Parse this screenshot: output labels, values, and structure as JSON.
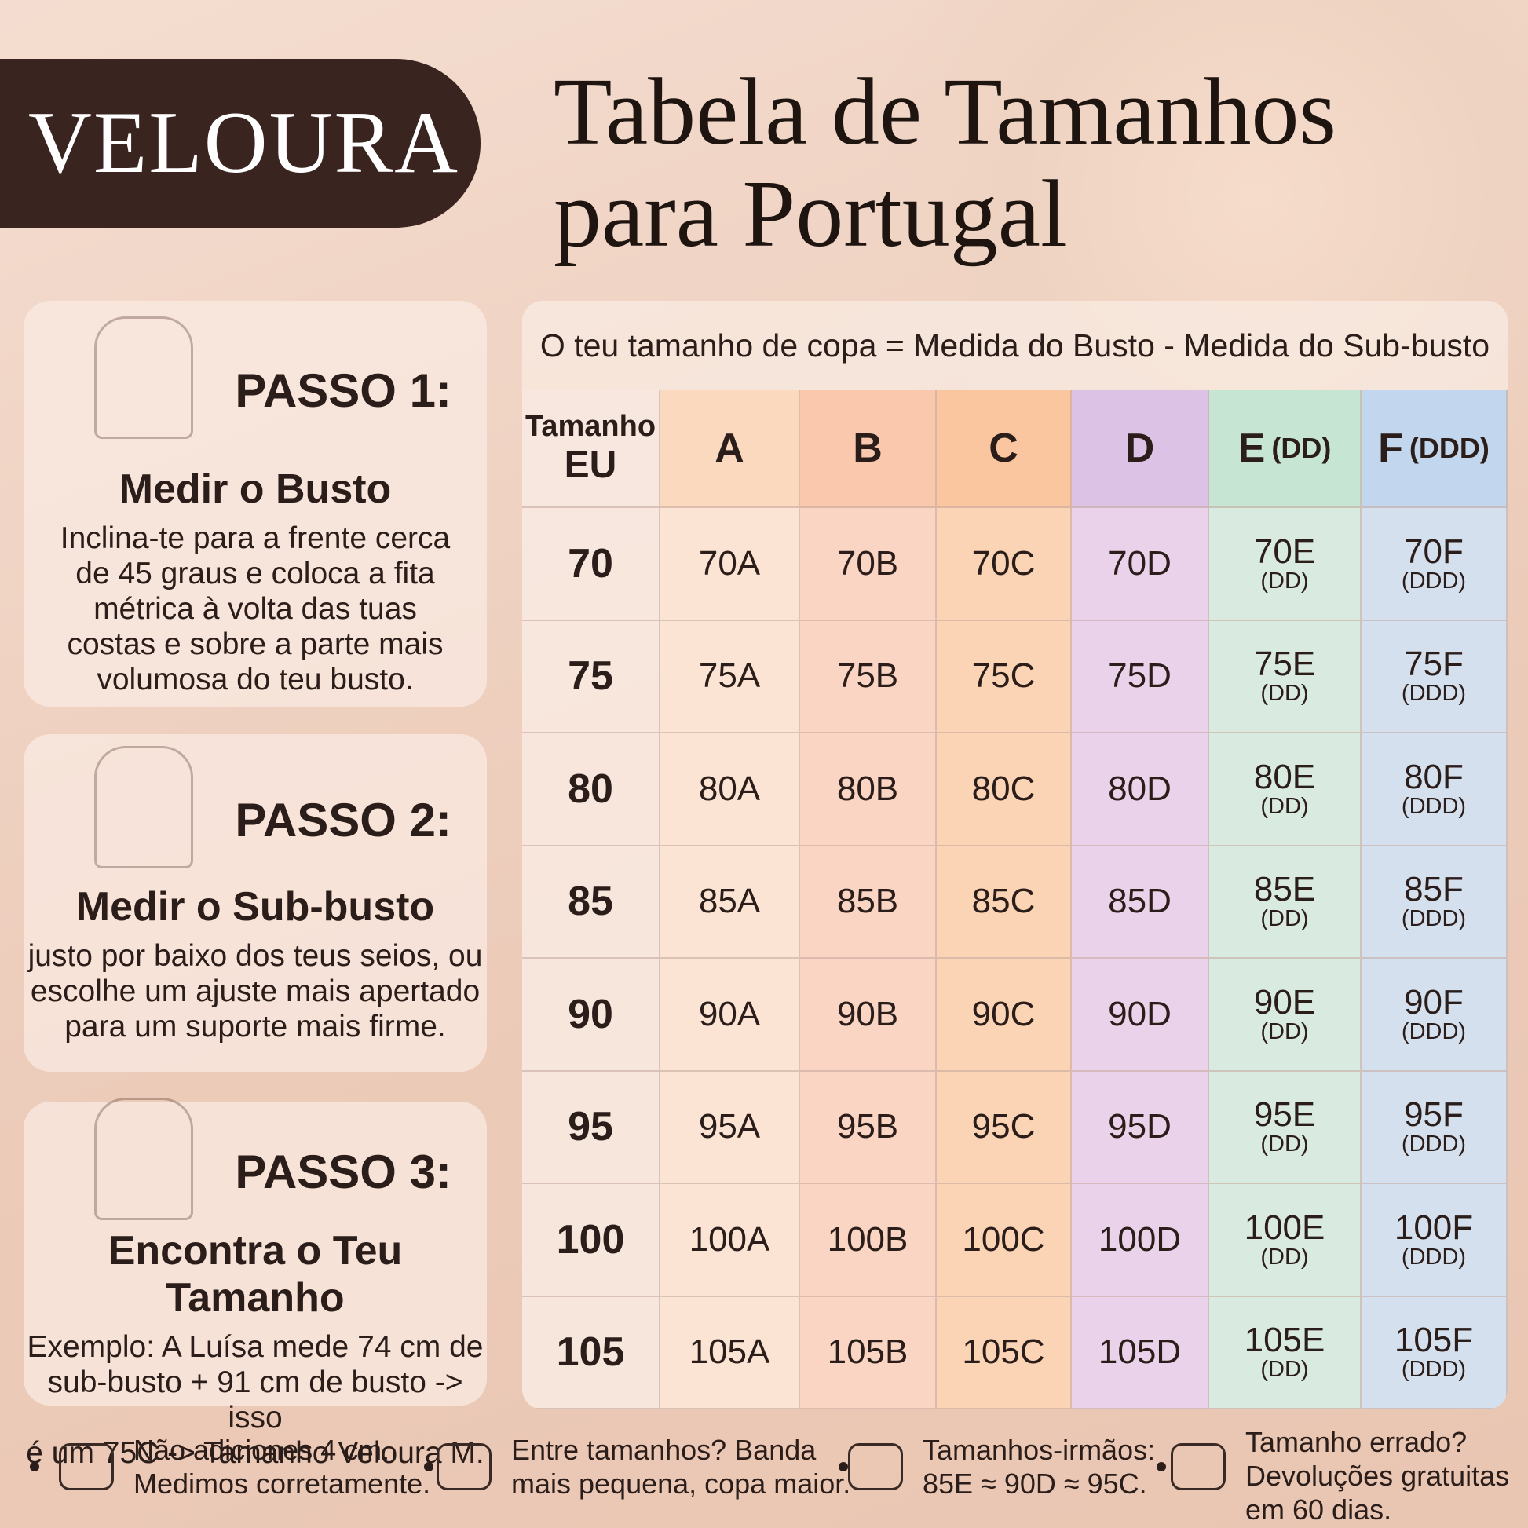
{
  "brand": "VELOURA",
  "title": [
    "Tabela de Tamanhos",
    "para Portugal"
  ],
  "steps": [
    {
      "title": "PASSO 1:",
      "subtitle": "Medir o Busto",
      "text": [
        "Inclina-te para a frente cerca",
        "de 45 graus e coloca a fita",
        "métrica à volta das tuas",
        "costas e sobre a parte mais",
        "volumosa do teu busto."
      ]
    },
    {
      "title": "PASSO 2:",
      "subtitle": "Medir o Sub-busto",
      "text": [
        "justo por baixo dos teus seios, ou",
        "escolhe um ajuste mais apertado",
        "para um suporte mais firme."
      ]
    },
    {
      "title": "PASSO 3:",
      "subtitle": "Encontra o Teu Tamanho",
      "text": [
        "Exemplo: A Luísa mede 74 cm de",
        "sub-busto + 91 cm de busto -> isso",
        "é um 75C -> Tamanho Veloura M."
      ]
    }
  ],
  "table": {
    "formula": "O teu tamanho de copa = Medida do Busto - Medida do Sub-busto",
    "header": [
      {
        "main": "Tamanho",
        "note": "EU"
      },
      {
        "main": "A"
      },
      {
        "main": "B"
      },
      {
        "main": "C"
      },
      {
        "main": "D"
      },
      {
        "main": "E",
        "note": "(DD)"
      },
      {
        "main": "F",
        "note": "(DDD)"
      }
    ],
    "rows": [
      [
        "70",
        "70A",
        "70B",
        "70C",
        "70D",
        {
          "size": "70E",
          "note": "(DD)"
        },
        {
          "size": "70F",
          "note": "(DDD)"
        }
      ],
      [
        "75",
        "75A",
        "75B",
        "75C",
        "75D",
        {
          "size": "75E",
          "note": "(DD)"
        },
        {
          "size": "75F",
          "note": "(DDD)"
        }
      ],
      [
        "80",
        "80A",
        "80B",
        "80C",
        "80D",
        {
          "size": "80E",
          "note": "(DD)"
        },
        {
          "size": "80F",
          "note": "(DDD)"
        }
      ],
      [
        "85",
        "85A",
        "85B",
        "85C",
        "85D",
        {
          "size": "85E",
          "note": "(DD)"
        },
        {
          "size": "85F",
          "note": "(DDD)"
        }
      ],
      [
        "90",
        "90A",
        "90B",
        "90C",
        "90D",
        {
          "size": "90E",
          "note": "(DD)"
        },
        {
          "size": "90F",
          "note": "(DDD)"
        }
      ],
      [
        "95",
        "95A",
        "95B",
        "95C",
        "95D",
        {
          "size": "95E",
          "note": "(DD)"
        },
        {
          "size": "95F",
          "note": "(DDD)"
        }
      ],
      [
        "100",
        "100A",
        "100B",
        "100C",
        "100D",
        {
          "size": "100E",
          "note": "(DD)"
        },
        {
          "size": "100F",
          "note": "(DDD)"
        }
      ],
      [
        "105",
        "105A",
        "105B",
        "105C",
        "105D",
        {
          "size": "105E",
          "note": "(DD)"
        },
        {
          "size": "105F",
          "note": "(DDD)"
        }
      ]
    ]
  },
  "footer": [
    [
      "Não adiciones 4 cm.",
      "Medimos corretamente."
    ],
    [
      "Entre tamanhos? Banda",
      "mais pequena, copa maior."
    ],
    [
      "Tamanhos-irmãos:",
      "85E ≈ 90D ≈ 95C."
    ],
    [
      "Tamanho errado?",
      "Devoluções gratuitas",
      "em 60 dias."
    ]
  ]
}
